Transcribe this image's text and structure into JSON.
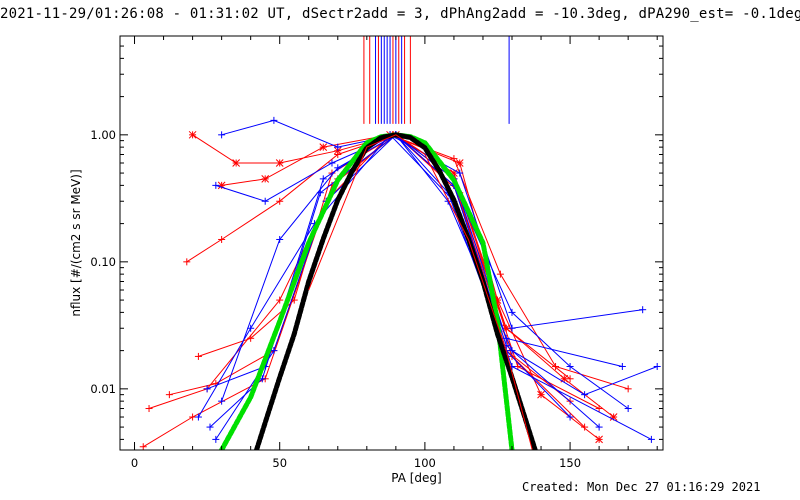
{
  "title": "2021-11-29/01:26:08 - 01:31:02 UT, dSectr2add = 3, dPhAng2add = -10.3deg, dPA290_est= -0.1deg",
  "created": "Created: Mon Dec 27 01:16:29 2021",
  "colors": {
    "series_a": "#ff0000",
    "series_b": "#0000ff",
    "fit_narrow": "#00e000",
    "fit_wide": "#000000"
  },
  "chart_data": {
    "type": "line",
    "xlabel": "PA [deg]",
    "ylabel": "nflux [#/(cm2 s sr MeV)]",
    "xlim": [
      -5,
      182
    ],
    "ylim": [
      0.0033,
      6.0
    ],
    "yscale": "log",
    "x_ticks": [
      0,
      50,
      100,
      150
    ],
    "x_tick_labels": [
      "0",
      "50",
      "100",
      "150"
    ],
    "y_ticks": [
      0.01,
      0.1,
      1.0
    ],
    "y_tick_labels": [
      "0.01",
      "0.10",
      "1.00"
    ],
    "series": [
      {
        "name": "red-1",
        "color": "red",
        "marker": "asterisk",
        "points": [
          [
            20,
            1.0
          ],
          [
            35,
            0.6
          ],
          [
            50,
            0.6
          ],
          [
            70,
            0.75
          ],
          [
            90,
            1.0
          ],
          [
            110,
            0.5
          ],
          [
            128,
            0.03
          ],
          [
            148,
            0.012
          ],
          [
            165,
            0.006
          ]
        ]
      },
      {
        "name": "red-2",
        "color": "red",
        "marker": "plus",
        "points": [
          [
            18,
            0.1
          ],
          [
            30,
            0.15
          ],
          [
            50,
            0.3
          ],
          [
            70,
            0.7
          ],
          [
            90,
            1.0
          ],
          [
            110,
            0.45
          ],
          [
            128,
            0.02
          ],
          [
            150,
            0.008
          ]
        ]
      },
      {
        "name": "red-3",
        "color": "red",
        "marker": "plus",
        "points": [
          [
            5,
            0.007
          ],
          [
            25,
            0.01
          ],
          [
            50,
            0.05
          ],
          [
            70,
            0.45
          ],
          [
            90,
            1.0
          ],
          [
            110,
            0.4
          ],
          [
            130,
            0.018
          ],
          [
            155,
            0.005
          ]
        ]
      },
      {
        "name": "red-4",
        "color": "red",
        "marker": "plus",
        "points": [
          [
            3,
            0.0035
          ],
          [
            20,
            0.006
          ],
          [
            45,
            0.012
          ],
          [
            68,
            0.4
          ],
          [
            90,
            1.0
          ],
          [
            112,
            0.35
          ],
          [
            132,
            0.015
          ],
          [
            160,
            0.007
          ]
        ]
      },
      {
        "name": "red-5",
        "color": "red",
        "marker": "plus",
        "points": [
          [
            12,
            0.009
          ],
          [
            28,
            0.011
          ],
          [
            48,
            0.02
          ],
          [
            66,
            0.3
          ],
          [
            88,
            1.0
          ],
          [
            110,
            0.65
          ],
          [
            126,
            0.08
          ],
          [
            145,
            0.015
          ],
          [
            170,
            0.01
          ]
        ]
      },
      {
        "name": "red-6",
        "color": "red",
        "marker": "plus",
        "points": [
          [
            22,
            0.018
          ],
          [
            40,
            0.025
          ],
          [
            55,
            0.05
          ],
          [
            68,
            0.5
          ],
          [
            90,
            1.0
          ],
          [
            110,
            0.4
          ],
          [
            128,
            0.03
          ],
          [
            150,
            0.012
          ]
        ]
      },
      {
        "name": "red-7",
        "color": "red",
        "marker": "asterisk",
        "points": [
          [
            30,
            0.4
          ],
          [
            45,
            0.45
          ],
          [
            65,
            0.8
          ],
          [
            88,
            1.0
          ],
          [
            112,
            0.6
          ],
          [
            125,
            0.05
          ],
          [
            140,
            0.009
          ],
          [
            160,
            0.004
          ]
        ]
      },
      {
        "name": "blue-1",
        "color": "blue",
        "marker": "plus",
        "points": [
          [
            30,
            1.0
          ],
          [
            48,
            1.3
          ],
          [
            70,
            0.8
          ],
          [
            90,
            1.0
          ],
          [
            110,
            0.4
          ],
          [
            130,
            0.04
          ],
          [
            150,
            0.015
          ],
          [
            170,
            0.007
          ]
        ]
      },
      {
        "name": "blue-2",
        "color": "blue",
        "marker": "plus",
        "points": [
          [
            28,
            0.4
          ],
          [
            45,
            0.3
          ],
          [
            68,
            0.6
          ],
          [
            90,
            1.0
          ],
          [
            108,
            0.35
          ],
          [
            128,
            0.02
          ],
          [
            150,
            0.006
          ]
        ]
      },
      {
        "name": "blue-3",
        "color": "blue",
        "marker": "plus",
        "points": [
          [
            25,
            0.01
          ],
          [
            45,
            0.015
          ],
          [
            65,
            0.45
          ],
          [
            88,
            1.0
          ],
          [
            110,
            0.3
          ],
          [
            130,
            0.015
          ],
          [
            178,
            0.004
          ]
        ]
      },
      {
        "name": "blue-4",
        "color": "blue",
        "marker": "plus",
        "points": [
          [
            28,
            0.004
          ],
          [
            48,
            0.02
          ],
          [
            66,
            0.3
          ],
          [
            90,
            1.0
          ],
          [
            110,
            0.45
          ],
          [
            128,
            0.025
          ],
          [
            168,
            0.015
          ]
        ]
      },
      {
        "name": "blue-5",
        "color": "blue",
        "marker": "plus",
        "points": [
          [
            22,
            0.006
          ],
          [
            40,
            0.03
          ],
          [
            62,
            0.2
          ],
          [
            88,
            1.0
          ],
          [
            112,
            0.5
          ],
          [
            130,
            0.03
          ],
          [
            175,
            0.042
          ]
        ]
      },
      {
        "name": "blue-6",
        "color": "blue",
        "marker": "plus",
        "points": [
          [
            30,
            0.008
          ],
          [
            50,
            0.15
          ],
          [
            70,
            0.55
          ],
          [
            90,
            1.0
          ],
          [
            110,
            0.4
          ],
          [
            128,
            0.022
          ],
          [
            160,
            0.005
          ]
        ]
      },
      {
        "name": "blue-7",
        "color": "blue",
        "marker": "plus",
        "points": [
          [
            26,
            0.005
          ],
          [
            44,
            0.012
          ],
          [
            64,
            0.35
          ],
          [
            90,
            1.0
          ],
          [
            108,
            0.3
          ],
          [
            130,
            0.02
          ],
          [
            155,
            0.009
          ],
          [
            180,
            0.015
          ]
        ]
      },
      {
        "name": "fit-narrow",
        "color": "green",
        "style": "thick",
        "points": [
          [
            30,
            0.0033
          ],
          [
            40,
            0.0086
          ],
          [
            50,
            0.034
          ],
          [
            60,
            0.141
          ],
          [
            70,
            0.44
          ],
          [
            80,
            0.865
          ],
          [
            85,
            0.966
          ],
          [
            90,
            1.0
          ],
          [
            95,
            0.966
          ],
          [
            100,
            0.865
          ],
          [
            110,
            0.44
          ],
          [
            120,
            0.141
          ],
          [
            125,
            0.034
          ],
          [
            130,
            0.0033
          ]
        ]
      },
      {
        "name": "fit-wide",
        "color": "black",
        "style": "thick",
        "points": [
          [
            42,
            0.0033
          ],
          [
            46,
            0.0064
          ],
          [
            50,
            0.0123
          ],
          [
            55,
            0.027
          ],
          [
            60,
            0.07
          ],
          [
            65,
            0.152
          ],
          [
            70,
            0.307
          ],
          [
            75,
            0.52
          ],
          [
            80,
            0.79
          ],
          [
            85,
            0.953
          ],
          [
            90,
            1.0
          ],
          [
            95,
            0.953
          ],
          [
            100,
            0.79
          ],
          [
            105,
            0.52
          ],
          [
            110,
            0.307
          ],
          [
            115,
            0.152
          ],
          [
            120,
            0.07
          ],
          [
            125,
            0.027
          ],
          [
            130,
            0.0123
          ],
          [
            134,
            0.0064
          ],
          [
            138,
            0.0033
          ]
        ]
      },
      {
        "name": "red-steep",
        "color": "red",
        "style": "plain",
        "points": [
          [
            60,
            0.06
          ],
          [
            80,
            0.8
          ],
          [
            90,
            1.0
          ],
          [
            100,
            0.7
          ],
          [
            115,
            0.15
          ],
          [
            128,
            0.02
          ],
          [
            137,
            0.0033
          ]
        ]
      }
    ],
    "vertical_markers": [
      {
        "x": 79,
        "color": "red"
      },
      {
        "x": 81,
        "color": "red"
      },
      {
        "x": 83,
        "color": "blue"
      },
      {
        "x": 84,
        "color": "red"
      },
      {
        "x": 85,
        "color": "blue"
      },
      {
        "x": 86,
        "color": "blue"
      },
      {
        "x": 87,
        "color": "blue"
      },
      {
        "x": 88,
        "color": "blue"
      },
      {
        "x": 89,
        "color": "red"
      },
      {
        "x": 90,
        "color": "blue"
      },
      {
        "x": 91,
        "color": "red"
      },
      {
        "x": 92,
        "color": "blue"
      },
      {
        "x": 93,
        "color": "red"
      },
      {
        "x": 95,
        "color": "red"
      },
      {
        "x": 129,
        "color": "blue"
      }
    ]
  }
}
